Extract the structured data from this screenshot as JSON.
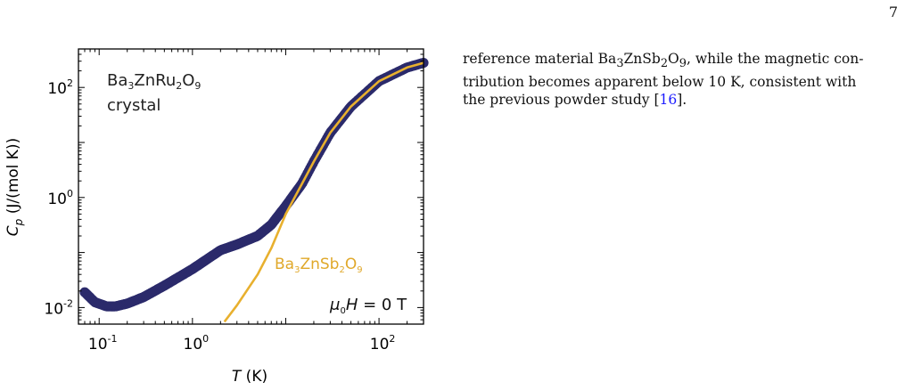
{
  "page_number": "7",
  "figure": {
    "sample_label_formula": {
      "base": "Ba",
      "sub1": "3",
      "mid1": "ZnRu",
      "sub2": "2",
      "mid2": "O",
      "sub3": "9"
    },
    "sample_label_line2": "crystal",
    "reference_label_formula": {
      "base": "Ba",
      "sub1": "3",
      "mid1": "ZnSb",
      "sub2": "2",
      "mid2": "O",
      "sub3": "9"
    },
    "field_label": {
      "mu": "μ",
      "sub": "0",
      "H": "H",
      "rest": " = 0 T"
    }
  },
  "chart_data": {
    "type": "scatter",
    "title": "",
    "xlabel": "T (K)",
    "ylabel": "C_p (J/(mol K))",
    "xscale": "log",
    "yscale": "log",
    "xlim": [
      0.06,
      300
    ],
    "ylim": [
      0.005,
      500
    ],
    "xticks": [
      0.1,
      1,
      100
    ],
    "xtick_labels": [
      "10^-1",
      "10^0",
      "10^2"
    ],
    "yticks": [
      0.01,
      1,
      100
    ],
    "ytick_labels": [
      "10^-2",
      "10^0",
      "10^2"
    ],
    "grid": false,
    "series": [
      {
        "name": "Ba3ZnRu2O9",
        "color": "#2b2a6b",
        "marker": "circle",
        "x": [
          0.07,
          0.09,
          0.12,
          0.15,
          0.2,
          0.3,
          0.5,
          1,
          2,
          3,
          5,
          7,
          10,
          15,
          20,
          30,
          50,
          100,
          200,
          300
        ],
        "y": [
          0.019,
          0.0125,
          0.0105,
          0.0105,
          0.0118,
          0.0155,
          0.025,
          0.05,
          0.11,
          0.14,
          0.2,
          0.32,
          0.7,
          1.8,
          4.5,
          15,
          45,
          130,
          230,
          280
        ]
      },
      {
        "name": "Ba3ZnSb2O9",
        "color": "#e8b02e",
        "marker": "line",
        "x": [
          2.2,
          3,
          5,
          7,
          10,
          15,
          20,
          30,
          50,
          100,
          200,
          300
        ],
        "y": [
          0.0055,
          0.011,
          0.04,
          0.12,
          0.5,
          1.8,
          4.5,
          15,
          45,
          130,
          230,
          280
        ]
      }
    ]
  },
  "text": {
    "line1_pre": "reference material ",
    "line1_formula": {
      "base": "Ba",
      "sub1": "3",
      "mid1": "ZnSb",
      "sub2": "2",
      "mid2": "O",
      "sub3": "9"
    },
    "line1_post": ", while the magnetic con-",
    "line2": "tribution becomes apparent below 10 K, consistent with",
    "line3_pre": "the previous powder study [",
    "line3_cite": "16",
    "line3_post": "]."
  }
}
